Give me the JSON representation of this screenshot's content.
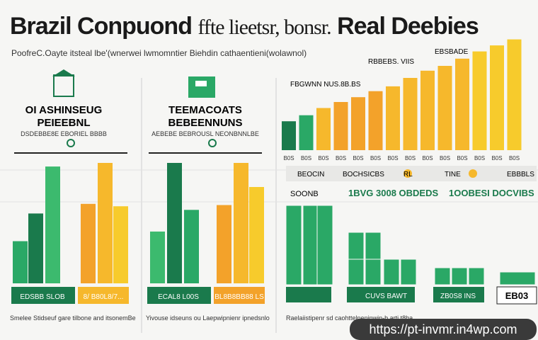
{
  "header": {
    "title_bold": "Brazil Conpuond",
    "title_light": "ffte lieetsr, bonsr.",
    "title_end": "Real Deebies",
    "subtitle": "PoofreC.Oayte itsteal lbe'(wnerwei lwmomntier Biehdin cathaentieni(wolawnol)"
  },
  "colors": {
    "dark_green": "#1a7a4c",
    "green": "#2aa866",
    "mid_green": "#3cba6e",
    "orange": "#f3a22a",
    "amber": "#f6b82c",
    "yellow": "#f7cb2c"
  },
  "panels": [
    {
      "icon": "bank-icon",
      "heading": "OI ASHINSEUG",
      "subheading": "PEIEEBNL",
      "caption": "DSDEBBE8E EBORIEL BBBB",
      "footer": "EDSBB SLOB",
      "footer2": "8/ B80L8/7..."
    },
    {
      "icon": "building-icon",
      "heading": "TEEMACOATS",
      "subheading": "BEBEENNUNS",
      "caption": "AEBEBE BEBROUSL NEONBNNLBE",
      "footer": "ECAL8 L00S",
      "footer2": "BL8B8BB88 LS"
    }
  ],
  "right_header": {
    "top_label": "EBSBADE",
    "sub_label": "RBBEBS. VIIS",
    "side_label": "FBGWNN NUS.8B.BS"
  },
  "row_labels": [
    {
      "a": "BEOCIN",
      "b": "BOCHSICBS",
      "c": "RL",
      "d": "TINE",
      "e": "EBBBLS"
    },
    {
      "a": "SOONB",
      "b": "1BVG 3008 OBDEDS",
      "c": "1OOBESI DOCVIBS"
    }
  ],
  "bottom_labels": {
    "left": "Smelee Stidseuf gare tilbone and itsonemBe",
    "mid": "Yivouse idseuns ou Laepwipnienr ipnedsnlo",
    "right": "Raelaiistipenr sd caohttelpeninwin-b arti t8ha"
  },
  "right_bottom": {
    "cell_a": "CUVS BAWT",
    "cell_b": "ZB0S8 INS",
    "cell_c": "EB03"
  },
  "footer_url": "https://pt-invmr.in4wp.com",
  "chart_data": [
    {
      "type": "bar",
      "title": "OI ASHINSEUG",
      "series": [
        {
          "name": "",
          "values": [
            0.35,
            0.58,
            0.97
          ]
        },
        {
          "name": "",
          "values": [
            0.66,
            1.0,
            0.64
          ]
        }
      ],
      "categories": [
        "",
        "",
        ""
      ],
      "ylim": [
        0,
        1
      ]
    },
    {
      "type": "bar",
      "title": "TEEMACOATS",
      "series": [
        {
          "name": "",
          "values": [
            0.43,
            1.0,
            0.61
          ]
        },
        {
          "name": "",
          "values": [
            0.65,
            1.0,
            0.8
          ]
        }
      ],
      "categories": [
        "",
        "",
        ""
      ],
      "ylim": [
        0,
        1
      ]
    },
    {
      "type": "bar",
      "title": "Real Deebies",
      "categories": [
        "",
        "",
        "",
        "",
        "",
        "",
        "",
        "",
        "",
        "",
        "",
        "",
        "",
        ""
      ],
      "values": [
        0.24,
        0.29,
        0.35,
        0.4,
        0.44,
        0.49,
        0.53,
        0.6,
        0.66,
        0.7,
        0.76,
        0.82,
        0.87,
        0.92
      ],
      "ylim": [
        0,
        1
      ]
    }
  ]
}
